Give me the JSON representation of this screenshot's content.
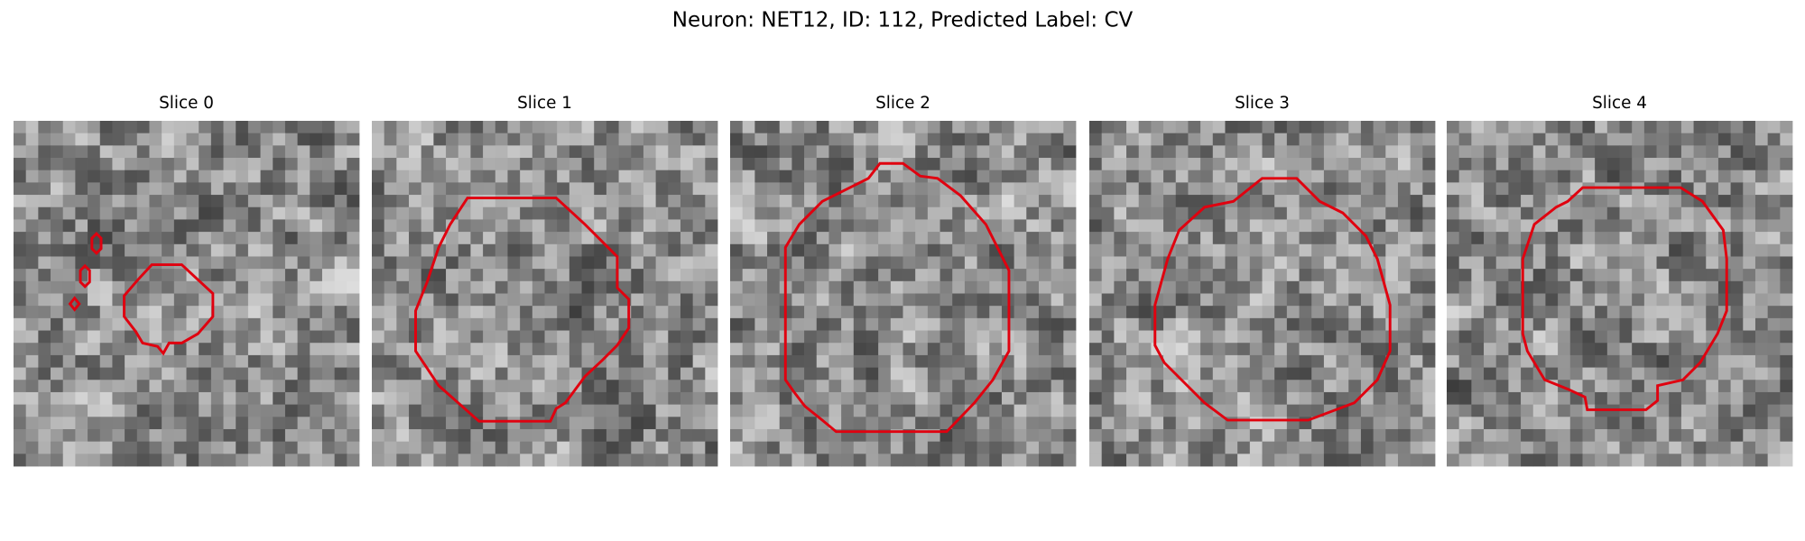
{
  "title": "Neuron: NET12, ID: 112, Predicted Label: CV",
  "panels": [
    {
      "title": "Slice 0"
    },
    {
      "title": "Slice 1"
    },
    {
      "title": "Slice 2"
    },
    {
      "title": "Slice 3"
    },
    {
      "title": "Slice 4"
    }
  ]
}
